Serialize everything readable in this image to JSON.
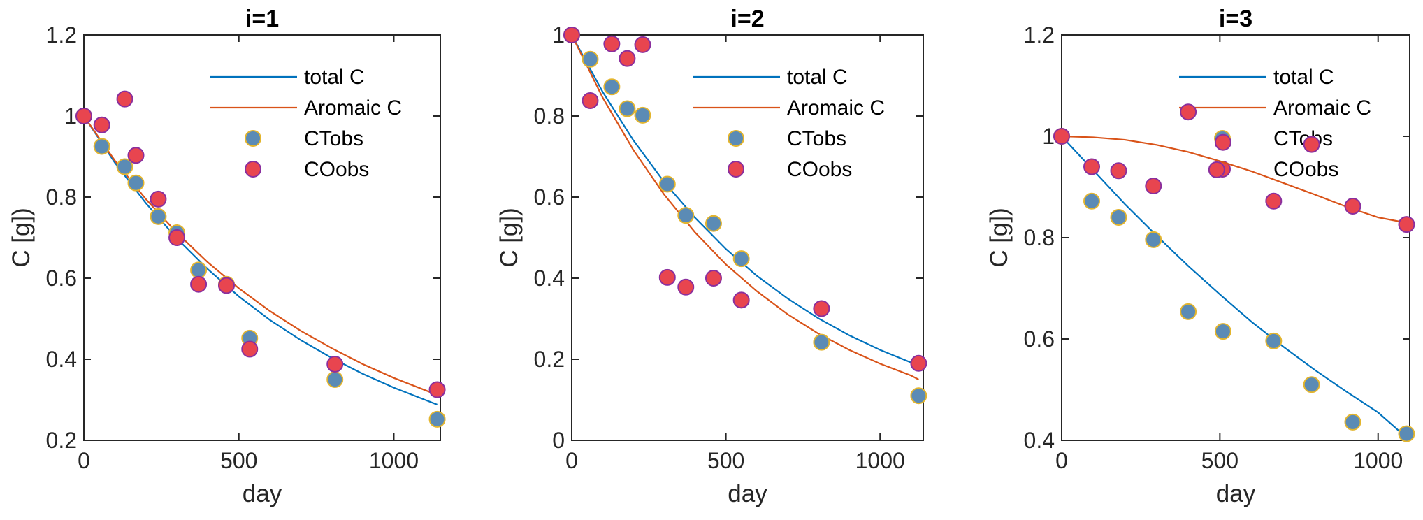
{
  "colors": {
    "total_line": "#0072BD",
    "aromatic_line": "#D95319",
    "ct_marker_fill": "#5B8BB5",
    "ct_marker_edge": "#E3B52E",
    "co_marker_fill": "#E8454F",
    "co_marker_edge": "#8A2F9E",
    "axis": "#262626"
  },
  "chart_data": [
    {
      "type": "line",
      "title": "i=1",
      "xlabel": "day",
      "ylabel": "C [g])",
      "xlim": [
        0,
        1150
      ],
      "ylim": [
        0.2,
        1.2
      ],
      "xticks": [
        0,
        500,
        1000
      ],
      "xtick_labels": [
        "0",
        "500",
        "1000"
      ],
      "yticks": [
        0.2,
        0.4,
        0.6,
        0.8,
        1.0,
        1.2
      ],
      "ytick_labels": [
        "0.2",
        "0.4",
        "0.6",
        "0.8",
        "1",
        "1.2"
      ],
      "grid": false,
      "legend_position": "top-right",
      "legend": [
        "total C",
        "Aromaic C",
        "CTobs",
        "COobs"
      ],
      "series": [
        {
          "name": "total C",
          "kind": "line",
          "x": [
            0,
            100,
            200,
            300,
            400,
            500,
            600,
            700,
            800,
            900,
            1000,
            1100,
            1140
          ],
          "y": [
            1.0,
            0.885,
            0.785,
            0.698,
            0.622,
            0.555,
            0.497,
            0.447,
            0.403,
            0.364,
            0.33,
            0.3,
            0.288
          ]
        },
        {
          "name": "Aromaic C",
          "kind": "line",
          "x": [
            0,
            100,
            200,
            300,
            400,
            500,
            600,
            700,
            800,
            900,
            1000,
            1100,
            1140
          ],
          "y": [
            1.0,
            0.89,
            0.795,
            0.712,
            0.639,
            0.575,
            0.519,
            0.47,
            0.427,
            0.388,
            0.354,
            0.324,
            0.312
          ]
        },
        {
          "name": "CTobs",
          "kind": "scatter",
          "x": [
            0,
            58,
            132,
            168,
            240,
            300,
            370,
            460,
            535,
            810,
            1140
          ],
          "y": [
            1.0,
            0.925,
            0.875,
            0.835,
            0.752,
            0.712,
            0.62,
            0.585,
            0.452,
            0.35,
            0.252
          ]
        },
        {
          "name": "COobs",
          "kind": "scatter",
          "x": [
            0,
            58,
            132,
            168,
            240,
            300,
            370,
            460,
            535,
            810,
            1140
          ],
          "y": [
            1.0,
            0.978,
            1.042,
            0.903,
            0.795,
            0.7,
            0.585,
            0.582,
            0.425,
            0.388,
            0.325
          ]
        }
      ]
    },
    {
      "type": "line",
      "title": "i=2",
      "xlabel": "day",
      "ylabel": "C [g])",
      "xlim": [
        0,
        1140
      ],
      "ylim": [
        0,
        1
      ],
      "xticks": [
        0,
        500,
        1000
      ],
      "xtick_labels": [
        "0",
        "500",
        "1000"
      ],
      "yticks": [
        0,
        0.2,
        0.4,
        0.6,
        0.8,
        1.0
      ],
      "ytick_labels": [
        "0",
        "0.2",
        "0.4",
        "0.6",
        "0.8",
        "1"
      ],
      "grid": false,
      "legend_position": "top-right",
      "legend": [
        "total C",
        "Aromaic C",
        "CTobs",
        "COobs"
      ],
      "series": [
        {
          "name": "total C",
          "kind": "line",
          "x": [
            0,
            100,
            200,
            300,
            400,
            500,
            600,
            700,
            800,
            900,
            1000,
            1100,
            1125
          ],
          "y": [
            1.0,
            0.86,
            0.74,
            0.637,
            0.549,
            0.472,
            0.406,
            0.35,
            0.301,
            0.259,
            0.223,
            0.192,
            0.185
          ]
        },
        {
          "name": "Aromaic C",
          "kind": "line",
          "x": [
            0,
            100,
            200,
            300,
            400,
            500,
            600,
            700,
            800,
            900,
            1000,
            1100,
            1125
          ],
          "y": [
            1.0,
            0.846,
            0.716,
            0.606,
            0.513,
            0.434,
            0.368,
            0.311,
            0.263,
            0.223,
            0.189,
            0.16,
            0.15
          ]
        },
        {
          "name": "CTobs",
          "kind": "scatter",
          "x": [
            0,
            60,
            130,
            180,
            230,
            310,
            370,
            460,
            550,
            810,
            1125
          ],
          "y": [
            1.0,
            0.94,
            0.872,
            0.818,
            0.802,
            0.632,
            0.555,
            0.535,
            0.448,
            0.242,
            0.11
          ]
        },
        {
          "name": "COobs",
          "kind": "scatter",
          "x": [
            0,
            60,
            130,
            180,
            230,
            310,
            370,
            460,
            550,
            810,
            1125
          ],
          "y": [
            1.0,
            0.838,
            0.978,
            0.942,
            0.976,
            0.402,
            0.378,
            0.4,
            0.346,
            0.325,
            0.19
          ]
        }
      ]
    },
    {
      "type": "line",
      "title": "i=3",
      "xlabel": "day",
      "ylabel": "C [g])",
      "xlim": [
        0,
        1100
      ],
      "ylim": [
        0.4,
        1.2
      ],
      "xticks": [
        0,
        500,
        1000
      ],
      "xtick_labels": [
        "0",
        "500",
        "1000"
      ],
      "yticks": [
        0.4,
        0.6,
        0.8,
        1.0,
        1.2
      ],
      "ytick_labels": [
        "0.4",
        "0.6",
        "0.8",
        "1",
        "1.2"
      ],
      "grid": false,
      "legend_position": "top-right",
      "legend": [
        "total C",
        "Aromaic C",
        "CTobs",
        "COobs"
      ],
      "series": [
        {
          "name": "total C",
          "kind": "line",
          "x": [
            0,
            100,
            200,
            300,
            400,
            500,
            600,
            700,
            800,
            900,
            1000,
            1100
          ],
          "y": [
            1.0,
            0.933,
            0.866,
            0.804,
            0.744,
            0.688,
            0.634,
            0.585,
            0.539,
            0.496,
            0.455,
            0.4
          ]
        },
        {
          "name": "Aromaic C",
          "kind": "line",
          "x": [
            0,
            100,
            200,
            300,
            400,
            500,
            600,
            700,
            800,
            900,
            1000,
            1100
          ],
          "y": [
            1.0,
            0.998,
            0.993,
            0.983,
            0.969,
            0.951,
            0.931,
            0.908,
            0.885,
            0.861,
            0.84,
            0.828
          ]
        },
        {
          "name": "CTobs",
          "kind": "scatter",
          "x": [
            0,
            95,
            180,
            290,
            400,
            510,
            670,
            790,
            920,
            1090
          ],
          "y": [
            1.0,
            0.872,
            0.84,
            0.796,
            0.654,
            0.615,
            0.596,
            0.51,
            0.436,
            0.413
          ]
        },
        {
          "name": "COobs",
          "kind": "scatter",
          "x": [
            0,
            95,
            180,
            290,
            400,
            490,
            510,
            670,
            790,
            920,
            1090
          ],
          "y": [
            1.0,
            0.94,
            0.932,
            0.902,
            1.048,
            0.934,
            0.988,
            0.872,
            0.984,
            0.862,
            0.826
          ]
        }
      ]
    }
  ]
}
